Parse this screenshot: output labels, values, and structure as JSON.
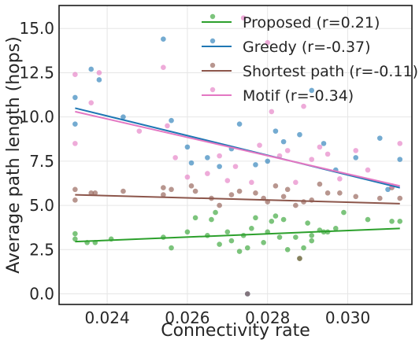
{
  "chart_data": {
    "type": "scatter",
    "xlabel": "Connectivity rate",
    "ylabel": "Average path length (hops)",
    "xlim": [
      0.0228,
      0.0316
    ],
    "ylim": [
      -0.6,
      16.3
    ],
    "xticks": [
      0.024,
      0.026,
      0.028,
      0.03
    ],
    "xtick_labels": [
      "0.024",
      "0.026",
      "0.028",
      "0.030"
    ],
    "yticks": [
      0.0,
      2.5,
      5.0,
      7.5,
      10.0,
      12.5,
      15.0
    ],
    "ytick_labels": [
      "0.0",
      "2.5",
      "5.0",
      "7.5",
      "10.0",
      "12.5",
      "15.0"
    ],
    "grid": true,
    "legend_position": "top-right",
    "series": [
      {
        "name": "Proposed (r=0.21)",
        "color": "#2ca02c",
        "line": {
          "x": [
            0.0232,
            0.0313
          ],
          "y": [
            2.95,
            3.7
          ]
        },
        "points": [
          {
            "x": 0.0232,
            "y": 3.1
          },
          {
            "x": 0.0232,
            "y": 3.4
          },
          {
            "x": 0.0235,
            "y": 2.9
          },
          {
            "x": 0.0237,
            "y": 2.9
          },
          {
            "x": 0.0241,
            "y": 3.1
          },
          {
            "x": 0.0254,
            "y": 3.2
          },
          {
            "x": 0.0256,
            "y": 2.6
          },
          {
            "x": 0.026,
            "y": 3.5
          },
          {
            "x": 0.0262,
            "y": 4.3
          },
          {
            "x": 0.0265,
            "y": 3.3
          },
          {
            "x": 0.0266,
            "y": 4.2
          },
          {
            "x": 0.0267,
            "y": 4.6
          },
          {
            "x": 0.0268,
            "y": 2.8
          },
          {
            "x": 0.027,
            "y": 3.5
          },
          {
            "x": 0.0271,
            "y": 3.0
          },
          {
            "x": 0.0273,
            "y": 2.4
          },
          {
            "x": 0.0274,
            "y": 3.3
          },
          {
            "x": 0.0275,
            "y": 2.6
          },
          {
            "x": 0.0276,
            "y": 3.7
          },
          {
            "x": 0.0277,
            "y": 4.3
          },
          {
            "x": 0.0279,
            "y": 2.9
          },
          {
            "x": 0.028,
            "y": 3.5
          },
          {
            "x": 0.0281,
            "y": 4.1
          },
          {
            "x": 0.0282,
            "y": 4.4
          },
          {
            "x": 0.0283,
            "y": 3.2
          },
          {
            "x": 0.0284,
            "y": 4.2
          },
          {
            "x": 0.0285,
            "y": 2.5
          },
          {
            "x": 0.0287,
            "y": 3.2
          },
          {
            "x": 0.0288,
            "y": 2.0
          },
          {
            "x": 0.0289,
            "y": 2.6
          },
          {
            "x": 0.029,
            "y": 4.0
          },
          {
            "x": 0.0291,
            "y": 3.0
          },
          {
            "x": 0.0291,
            "y": 3.3
          },
          {
            "x": 0.0293,
            "y": 3.6
          },
          {
            "x": 0.0294,
            "y": 3.5
          },
          {
            "x": 0.0295,
            "y": 3.5
          },
          {
            "x": 0.0297,
            "y": 3.7
          },
          {
            "x": 0.0299,
            "y": 4.6
          },
          {
            "x": 0.0305,
            "y": 4.2
          },
          {
            "x": 0.0311,
            "y": 4.1
          },
          {
            "x": 0.0313,
            "y": 4.1
          }
        ]
      },
      {
        "name": "Greedy (r=-0.37)",
        "color": "#1f77b4",
        "line": {
          "x": [
            0.0232,
            0.0313
          ],
          "y": [
            10.5,
            6.0
          ]
        },
        "points": [
          {
            "x": 0.0232,
            "y": 11.1
          },
          {
            "x": 0.0232,
            "y": 9.6
          },
          {
            "x": 0.0236,
            "y": 12.7
          },
          {
            "x": 0.0238,
            "y": 12.1
          },
          {
            "x": 0.0244,
            "y": 10.0
          },
          {
            "x": 0.0254,
            "y": 14.4
          },
          {
            "x": 0.0256,
            "y": 9.8
          },
          {
            "x": 0.026,
            "y": 8.3
          },
          {
            "x": 0.0261,
            "y": 7.4
          },
          {
            "x": 0.0265,
            "y": 7.7
          },
          {
            "x": 0.0268,
            "y": 7.2
          },
          {
            "x": 0.0271,
            "y": 8.2
          },
          {
            "x": 0.0273,
            "y": 9.6
          },
          {
            "x": 0.0275,
            "y": 0.0
          },
          {
            "x": 0.0277,
            "y": 7.3
          },
          {
            "x": 0.028,
            "y": 7.5
          },
          {
            "x": 0.0282,
            "y": 9.2
          },
          {
            "x": 0.0284,
            "y": 8.6
          },
          {
            "x": 0.0288,
            "y": 9.0
          },
          {
            "x": 0.0291,
            "y": 11.5
          },
          {
            "x": 0.0294,
            "y": 8.5
          },
          {
            "x": 0.0297,
            "y": 7.0
          },
          {
            "x": 0.0302,
            "y": 7.7
          },
          {
            "x": 0.0308,
            "y": 8.8
          },
          {
            "x": 0.031,
            "y": 5.9
          },
          {
            "x": 0.0313,
            "y": 7.6
          }
        ]
      },
      {
        "name": "Shortest path (r=-0.11)",
        "color": "#8c564b",
        "line": {
          "x": [
            0.0232,
            0.0313
          ],
          "y": [
            5.6,
            5.1
          ]
        },
        "points": [
          {
            "x": 0.0232,
            "y": 5.9
          },
          {
            "x": 0.0232,
            "y": 5.3
          },
          {
            "x": 0.0236,
            "y": 5.7
          },
          {
            "x": 0.0237,
            "y": 5.7
          },
          {
            "x": 0.0244,
            "y": 5.8
          },
          {
            "x": 0.0254,
            "y": 6.0
          },
          {
            "x": 0.0254,
            "y": 5.6
          },
          {
            "x": 0.0256,
            "y": 5.9
          },
          {
            "x": 0.0261,
            "y": 6.1
          },
          {
            "x": 0.0262,
            "y": 5.8
          },
          {
            "x": 0.0266,
            "y": 5.4
          },
          {
            "x": 0.0268,
            "y": 5.0
          },
          {
            "x": 0.0271,
            "y": 5.6
          },
          {
            "x": 0.0273,
            "y": 5.8
          },
          {
            "x": 0.0275,
            "y": 0.0
          },
          {
            "x": 0.0277,
            "y": 5.7
          },
          {
            "x": 0.0279,
            "y": 5.4
          },
          {
            "x": 0.028,
            "y": 5.2
          },
          {
            "x": 0.0282,
            "y": 6.1
          },
          {
            "x": 0.0284,
            "y": 5.5
          },
          {
            "x": 0.0285,
            "y": 5.9
          },
          {
            "x": 0.0287,
            "y": 5.0
          },
          {
            "x": 0.0288,
            "y": 2.0
          },
          {
            "x": 0.0289,
            "y": 5.2
          },
          {
            "x": 0.0291,
            "y": 5.3
          },
          {
            "x": 0.0293,
            "y": 6.2
          },
          {
            "x": 0.0295,
            "y": 5.7
          },
          {
            "x": 0.0298,
            "y": 5.7
          },
          {
            "x": 0.0302,
            "y": 5.5
          },
          {
            "x": 0.0308,
            "y": 5.4
          },
          {
            "x": 0.0311,
            "y": 6.0
          },
          {
            "x": 0.0313,
            "y": 5.4
          }
        ]
      },
      {
        "name": "Motif (r=-0.34)",
        "color": "#e377c2",
        "line": {
          "x": [
            0.0232,
            0.0313
          ],
          "y": [
            10.3,
            6.1
          ]
        },
        "points": [
          {
            "x": 0.0232,
            "y": 12.4
          },
          {
            "x": 0.0232,
            "y": 8.5
          },
          {
            "x": 0.0236,
            "y": 10.8
          },
          {
            "x": 0.0238,
            "y": 12.5
          },
          {
            "x": 0.0248,
            "y": 9.2
          },
          {
            "x": 0.0254,
            "y": 12.8
          },
          {
            "x": 0.0255,
            "y": 9.5
          },
          {
            "x": 0.0257,
            "y": 7.7
          },
          {
            "x": 0.026,
            "y": 6.6
          },
          {
            "x": 0.0265,
            "y": 6.8
          },
          {
            "x": 0.0268,
            "y": 7.8
          },
          {
            "x": 0.027,
            "y": 6.4
          },
          {
            "x": 0.0272,
            "y": 7.2
          },
          {
            "x": 0.0274,
            "y": 15.6
          },
          {
            "x": 0.0276,
            "y": 6.3
          },
          {
            "x": 0.0278,
            "y": 8.4
          },
          {
            "x": 0.028,
            "y": 14.2
          },
          {
            "x": 0.0281,
            "y": 10.3
          },
          {
            "x": 0.0283,
            "y": 7.8
          },
          {
            "x": 0.0285,
            "y": 8.1
          },
          {
            "x": 0.0287,
            "y": 6.3
          },
          {
            "x": 0.0289,
            "y": 10.6
          },
          {
            "x": 0.0291,
            "y": 7.6
          },
          {
            "x": 0.0293,
            "y": 8.3
          },
          {
            "x": 0.0295,
            "y": 7.9
          },
          {
            "x": 0.0298,
            "y": 6.5
          },
          {
            "x": 0.0302,
            "y": 8.1
          },
          {
            "x": 0.0305,
            "y": 7.0
          },
          {
            "x": 0.0311,
            "y": 6.1
          },
          {
            "x": 0.0313,
            "y": 8.5
          }
        ]
      }
    ]
  }
}
